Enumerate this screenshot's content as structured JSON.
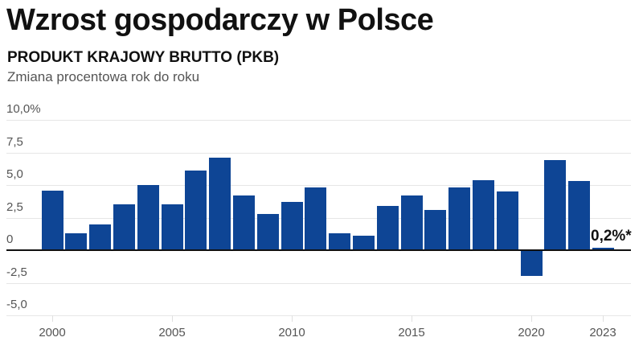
{
  "header": {
    "title": "Wzrost gospodarczy w Polsce",
    "subtitle": "PRODUKT KRAJOWY BRUTTO (PKB)",
    "caption": "Zmiana procentowa rok do roku"
  },
  "colors": {
    "bar": "#0e4595",
    "grid": "#e6e6e6",
    "baseline": "#111111",
    "text": "#555555"
  },
  "chart_data": {
    "type": "bar",
    "title": "Wzrost gospodarczy w Polsce",
    "subtitle": "PRODUKT KRAJOWY BRUTTO (PKB) — Zmiana procentowa rok do roku",
    "xlabel": "",
    "ylabel": "Zmiana procentowa rok do roku (%)",
    "ylim": [
      -5.0,
      10.0
    ],
    "yticks": [
      "10,0%",
      "7,5",
      "5,0",
      "2,5",
      "0",
      "-2,5",
      "-5,0"
    ],
    "ytick_values": [
      10.0,
      7.5,
      5.0,
      2.5,
      0,
      -2.5,
      -5.0
    ],
    "xticks": [
      "2000",
      "2005",
      "2010",
      "2015",
      "2020",
      "2023"
    ],
    "grid": true,
    "categories": [
      "2000",
      "2001",
      "2002",
      "2003",
      "2004",
      "2005",
      "2006",
      "2007",
      "2008",
      "2009",
      "2010",
      "2011",
      "2012",
      "2013",
      "2014",
      "2015",
      "2016",
      "2017",
      "2018",
      "2019",
      "2020",
      "2021",
      "2022",
      "2023"
    ],
    "values": [
      4.6,
      1.3,
      2.0,
      3.5,
      5.0,
      3.5,
      6.1,
      7.1,
      4.2,
      2.8,
      3.7,
      4.8,
      1.3,
      1.1,
      3.4,
      4.2,
      3.1,
      4.8,
      5.4,
      4.5,
      -2.0,
      6.9,
      5.3,
      0.2
    ],
    "annotations": [
      {
        "x": "2023",
        "text": "0,2%*"
      }
    ]
  }
}
